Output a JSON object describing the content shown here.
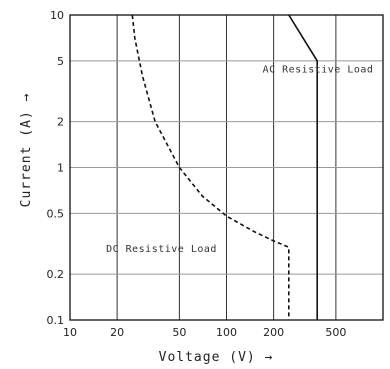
{
  "chart_data": {
    "type": "line",
    "xlabel": "Voltage (V) →",
    "ylabel": "Current (A) →",
    "x_scale": "log",
    "y_scale": "log",
    "xlim": [
      10,
      1000
    ],
    "ylim": [
      0.1,
      10
    ],
    "grid": true,
    "x_ticks": [
      10,
      20,
      50,
      100,
      200,
      500
    ],
    "x_tick_labels": [
      "10",
      "20",
      "50",
      "100",
      "200",
      "500"
    ],
    "y_ticks": [
      0.1,
      0.2,
      0.5,
      1,
      2,
      5,
      10
    ],
    "y_tick_labels": [
      "0.1",
      "0.2",
      "0.5",
      "1",
      "2",
      "5",
      "10"
    ],
    "series": [
      {
        "name": "AC Resistive Load",
        "style": "solid",
        "color": "#111111",
        "points": [
          [
            250,
            10
          ],
          [
            380,
            5
          ],
          [
            380,
            0.1
          ]
        ]
      },
      {
        "name": "DC Resistive Load",
        "style": "dashed",
        "color": "#111111",
        "points": [
          [
            25,
            10
          ],
          [
            26,
            7
          ],
          [
            29,
            4
          ],
          [
            35,
            2
          ],
          [
            50,
            1
          ],
          [
            70,
            0.65
          ],
          [
            100,
            0.48
          ],
          [
            150,
            0.38
          ],
          [
            200,
            0.33
          ],
          [
            250,
            0.3
          ],
          [
            250,
            0.1
          ]
        ]
      }
    ],
    "annotations": [
      {
        "text": "AC Resistive Load",
        "x": 170,
        "y": 4.2
      },
      {
        "text": "DC Resistive Load",
        "x": 17,
        "y": 0.28
      }
    ]
  }
}
